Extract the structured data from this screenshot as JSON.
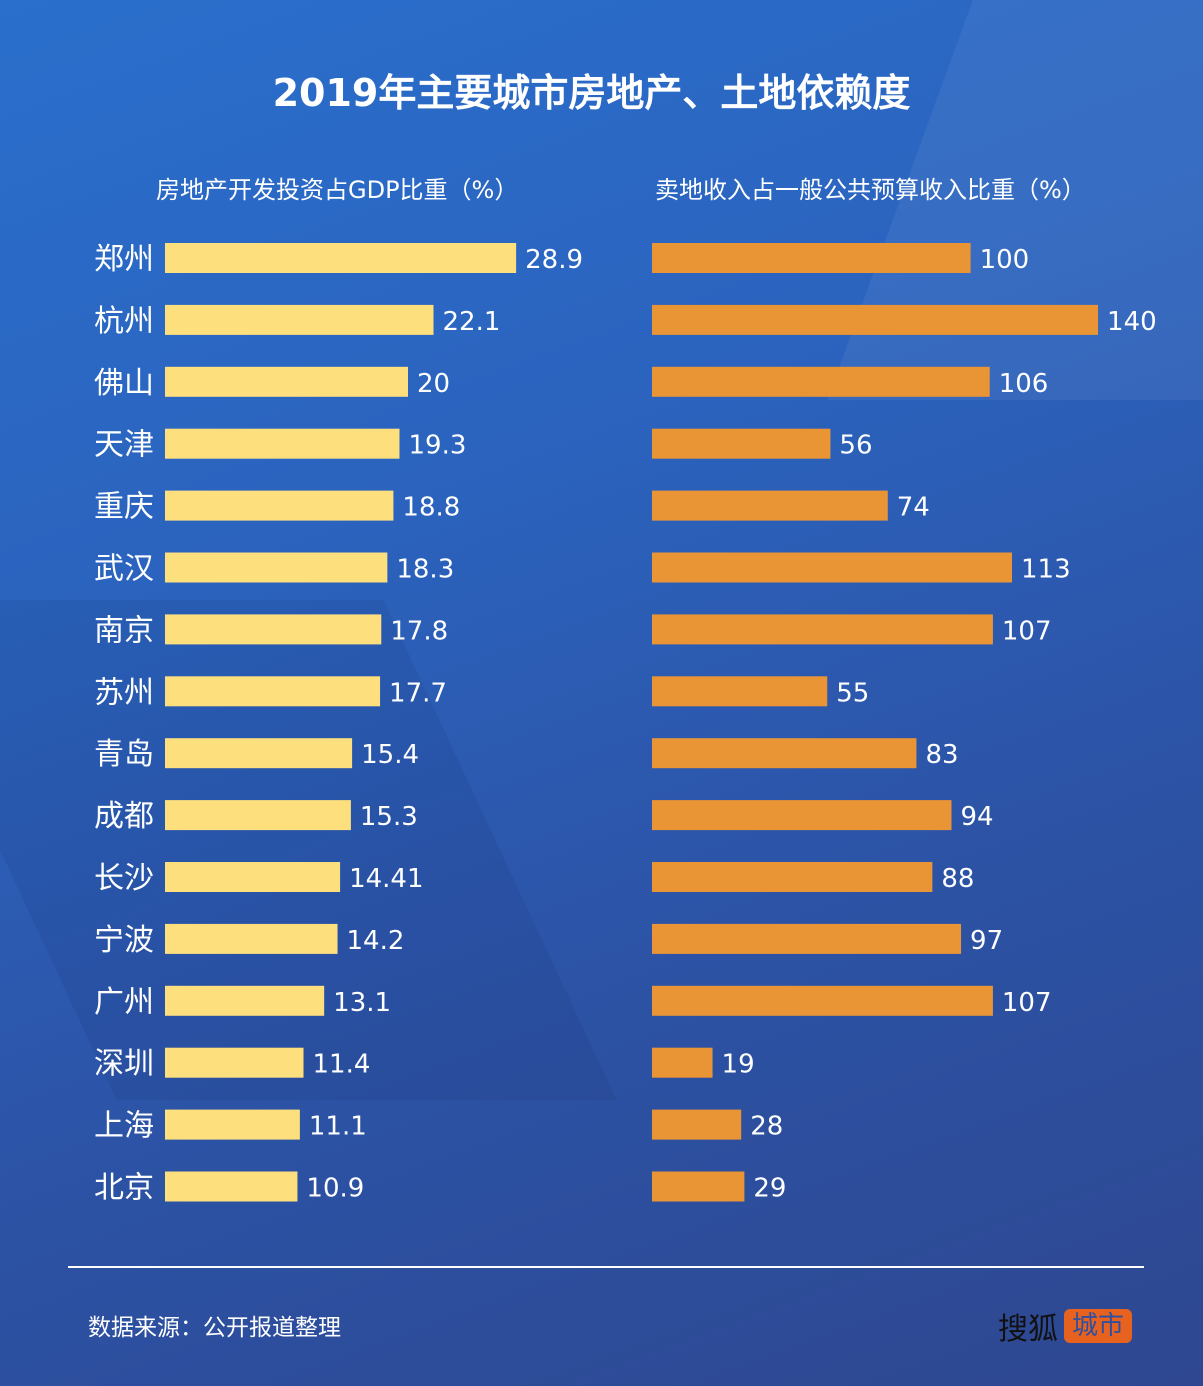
{
  "title": "2019年主要城市房地产、土地依赖度",
  "source": "数据来源：公开报道整理",
  "logo": {
    "brand": "搜狐",
    "tag": "城市"
  },
  "colors": {
    "left_bar": "#fddf7e",
    "right_bar": "#ea9535",
    "tag_bg": "#e8621f"
  },
  "chart_data": [
    {
      "type": "bar",
      "orientation": "horizontal",
      "title": "房地产开发投资占GDP比重（%）",
      "categories": [
        "郑州",
        "杭州",
        "佛山",
        "天津",
        "重庆",
        "武汉",
        "南京",
        "苏州",
        "青岛",
        "成都",
        "长沙",
        "宁波",
        "广州",
        "深圳",
        "上海",
        "北京"
      ],
      "values": [
        28.9,
        22.1,
        20,
        19.3,
        18.8,
        18.3,
        17.8,
        17.7,
        15.4,
        15.3,
        14.41,
        14.2,
        13.1,
        11.4,
        11.1,
        10.9
      ],
      "value_labels": [
        "28.9",
        "22.1",
        "20",
        "19.3",
        "18.8",
        "18.3",
        "17.8",
        "17.7",
        "15.4",
        "15.3",
        "14.41",
        "14.2",
        "13.1",
        "11.4",
        "11.1",
        "10.9"
      ],
      "grid": false
    },
    {
      "type": "bar",
      "orientation": "horizontal",
      "title": "卖地收入占一般公共预算收入比重（%）",
      "categories": [
        "郑州",
        "杭州",
        "佛山",
        "天津",
        "重庆",
        "武汉",
        "南京",
        "苏州",
        "青岛",
        "成都",
        "长沙",
        "宁波",
        "广州",
        "深圳",
        "上海",
        "北京"
      ],
      "values": [
        100,
        140,
        106,
        56,
        74,
        113,
        107,
        55,
        83,
        94,
        88,
        97,
        107,
        19,
        28,
        29
      ],
      "value_labels": [
        "100",
        "140",
        "106",
        "56",
        "74",
        "113",
        "107",
        "55",
        "83",
        "94",
        "88",
        "97",
        "107",
        "19",
        "28",
        "29"
      ],
      "grid": false
    }
  ]
}
